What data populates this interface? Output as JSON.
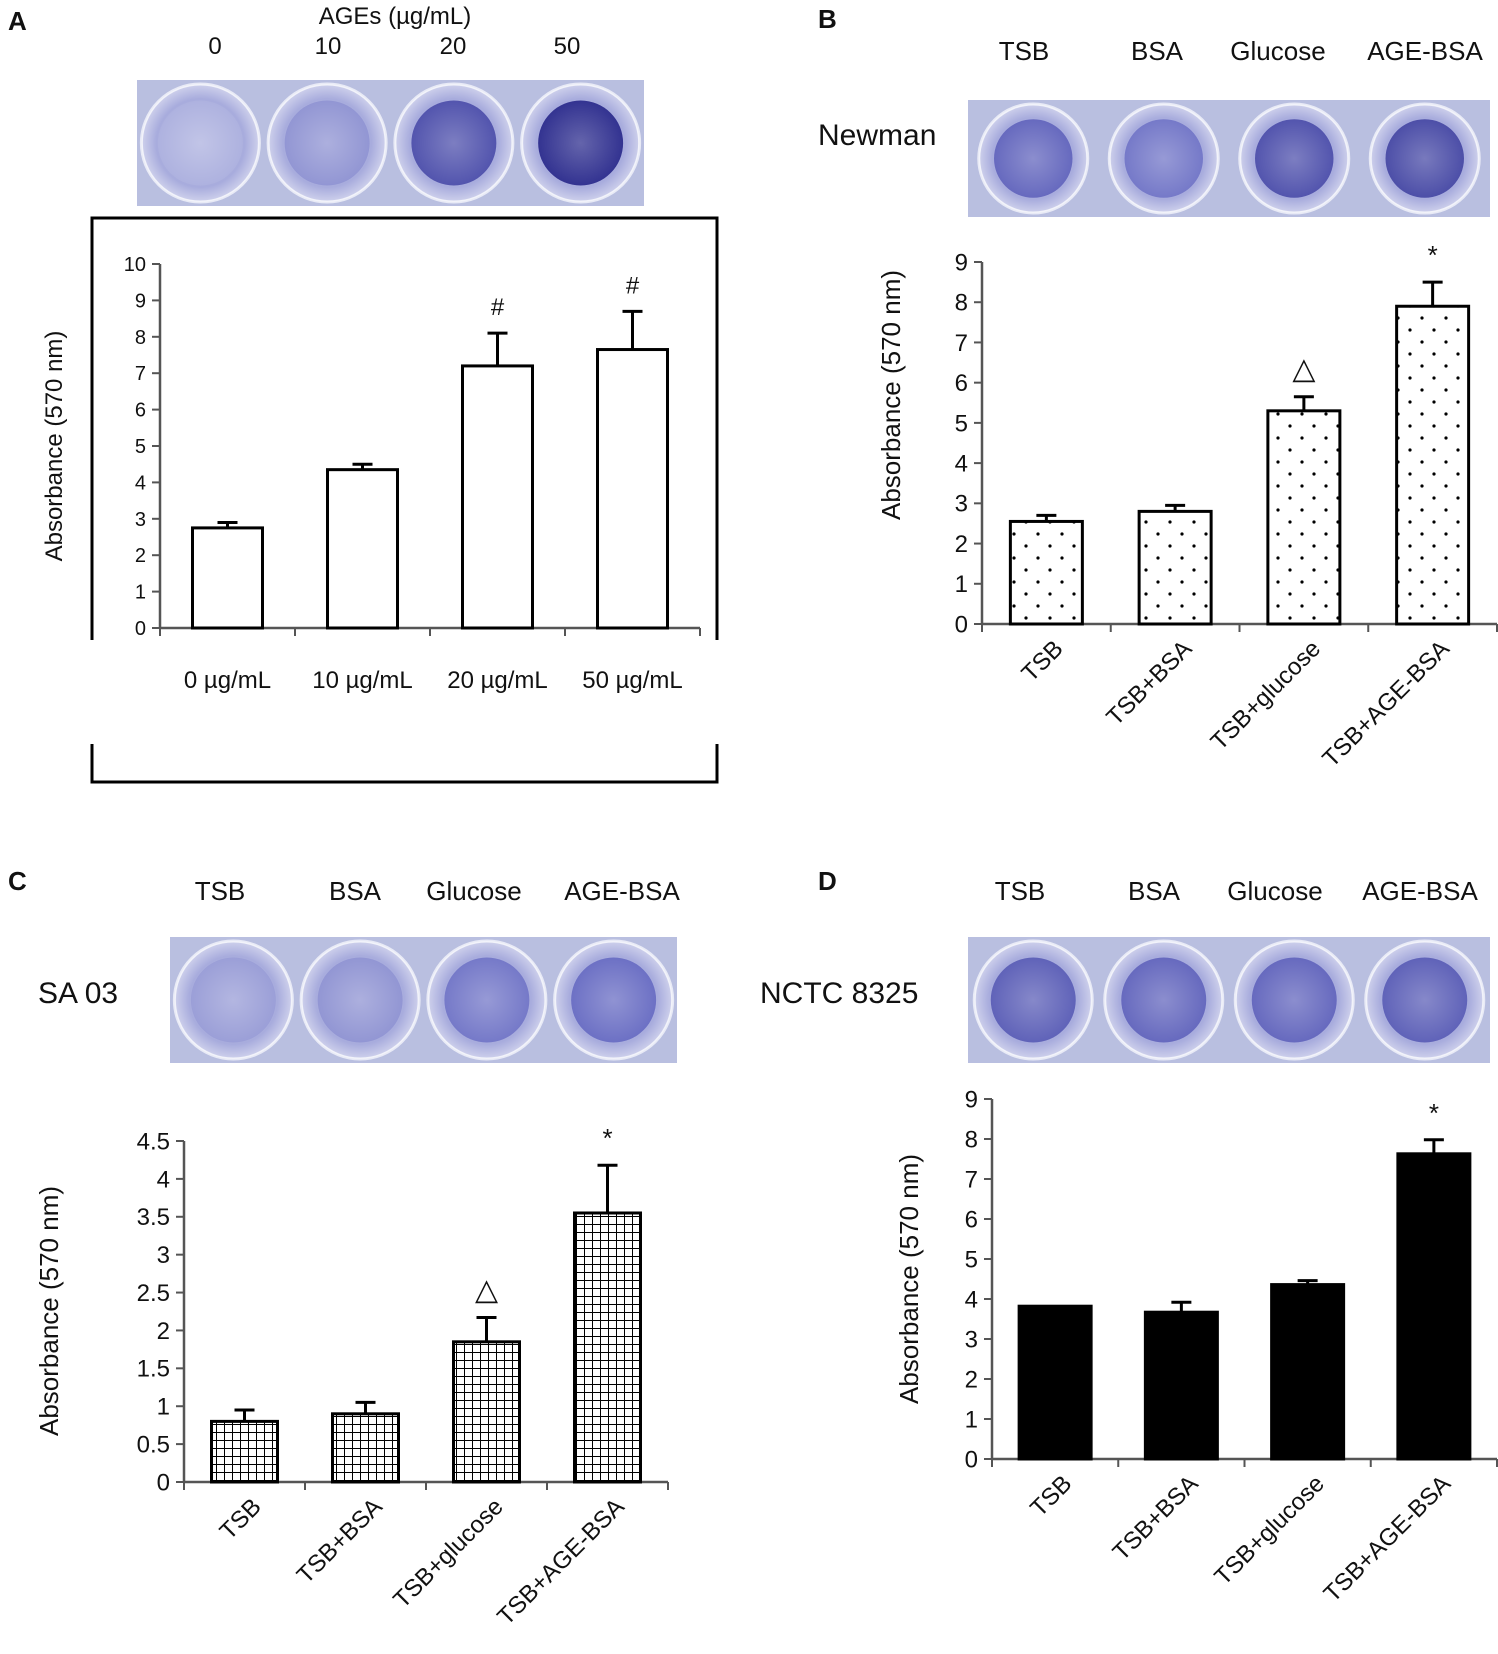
{
  "colors": {
    "ink": "#000000",
    "well_light": "#c9cdea",
    "well_mid": "#6b6fc4",
    "well_dark": "#2a2a8a",
    "plate_bg": "#b9bfe0",
    "bar_black": "#000000",
    "bar_white": "#ffffff"
  },
  "panels": {
    "A": {
      "letter": "A",
      "image_header": "AGEs (µg/mL)",
      "well_labels": [
        "0",
        "10",
        "20",
        "50"
      ],
      "well_intensity": [
        0.15,
        0.3,
        0.7,
        0.95
      ]
    },
    "B": {
      "letter": "B",
      "strain": "Newman",
      "well_labels": [
        "TSB",
        "BSA",
        "Glucose",
        "AGE-BSA"
      ],
      "well_intensity": [
        0.55,
        0.45,
        0.7,
        0.75
      ]
    },
    "C": {
      "letter": "C",
      "strain": "SA 03",
      "well_labels": [
        "TSB",
        "BSA",
        "Glucose",
        "AGE-BSA"
      ],
      "well_intensity": [
        0.25,
        0.3,
        0.45,
        0.5
      ]
    },
    "D": {
      "letter": "D",
      "strain": "NCTC 8325",
      "well_labels": [
        "TSB",
        "BSA",
        "Glucose",
        "AGE-BSA"
      ],
      "well_intensity": [
        0.6,
        0.55,
        0.55,
        0.6
      ]
    }
  },
  "chart_data": [
    {
      "panel": "A",
      "type": "bar",
      "fill": "open",
      "ylabel": "Absorbance (570 nm)",
      "ylim": [
        0,
        10
      ],
      "yticks": [
        "0",
        "1",
        "2",
        "3",
        "4",
        "5",
        "6",
        "7",
        "8",
        "9",
        "10"
      ],
      "categories": [
        "0 µg/mL",
        "10 µg/mL",
        "20 µg/mL",
        "50 µg/mL"
      ],
      "values": [
        2.75,
        4.35,
        7.2,
        7.65
      ],
      "errors": [
        0.15,
        0.15,
        0.9,
        1.05
      ],
      "annotations": [
        "",
        "",
        "#",
        "#"
      ]
    },
    {
      "panel": "B",
      "type": "bar",
      "fill": "dots",
      "ylabel": "Absorbance (570 nm)",
      "ylim": [
        0,
        9
      ],
      "yticks": [
        "0",
        "1",
        "2",
        "3",
        "4",
        "5",
        "6",
        "7",
        "8",
        "9"
      ],
      "categories": [
        "TSB",
        "TSB+BSA",
        "TSB+glucose",
        "TSB+AGE-BSA"
      ],
      "values": [
        2.55,
        2.8,
        5.3,
        7.9
      ],
      "errors": [
        0.15,
        0.15,
        0.35,
        0.6
      ],
      "annotations": [
        "",
        "",
        "△",
        "*"
      ]
    },
    {
      "panel": "C",
      "type": "bar",
      "fill": "grid",
      "ylabel": "Absorbance (570 nm)",
      "ylim": [
        0,
        4.5
      ],
      "yticks": [
        "0",
        "0.5",
        "1",
        "1.5",
        "2",
        "2.5",
        "3",
        "3.5",
        "4",
        "4.5"
      ],
      "categories": [
        "TSB",
        "TSB+BSA",
        "TSB+glucose",
        "TSB+AGE-BSA"
      ],
      "values": [
        0.8,
        0.9,
        1.85,
        3.55
      ],
      "errors": [
        0.15,
        0.15,
        0.32,
        0.63
      ],
      "annotations": [
        "",
        "",
        "△",
        "*"
      ]
    },
    {
      "panel": "D",
      "type": "bar",
      "fill": "solid",
      "ylabel": "Absorbance (570 nm)",
      "ylim": [
        0,
        9
      ],
      "yticks": [
        "0",
        "1",
        "2",
        "3",
        "4",
        "5",
        "6",
        "7",
        "8",
        "9"
      ],
      "categories": [
        "TSB",
        "TSB+BSA",
        "TSB+glucose",
        "TSB+AGE-BSA"
      ],
      "values": [
        3.82,
        3.67,
        4.36,
        7.63
      ],
      "errors": [
        0,
        0.25,
        0.1,
        0.35
      ],
      "annotations": [
        "",
        "",
        "",
        "*"
      ]
    }
  ]
}
